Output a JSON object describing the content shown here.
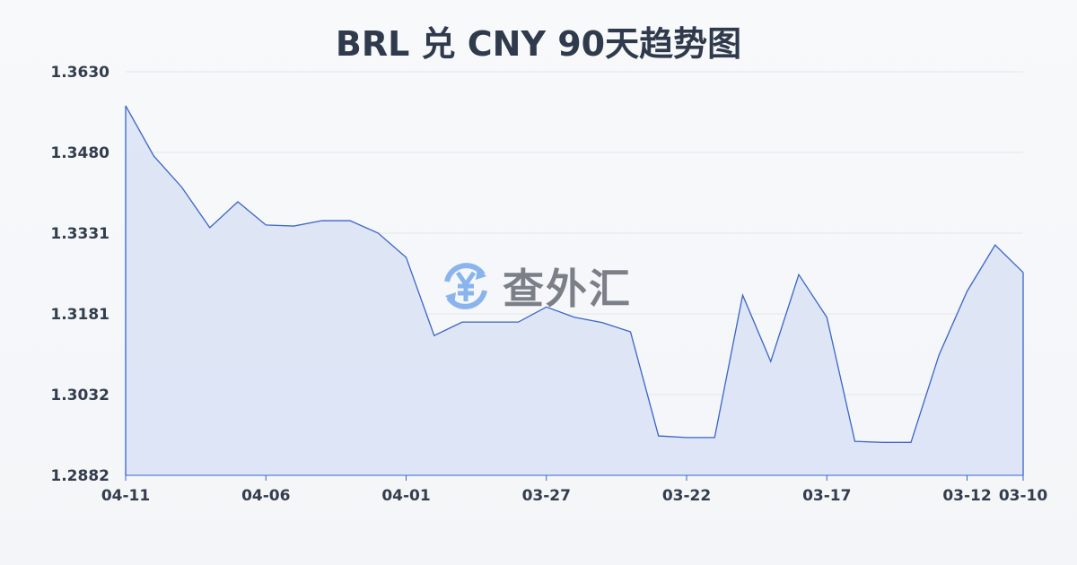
{
  "chart_data": {
    "type": "area",
    "title": "BRL 兑 CNY 90天趋势图",
    "xlabel": "",
    "ylabel": "",
    "x_tick_labels": [
      "04-11",
      "04-06",
      "04-01",
      "03-27",
      "03-22",
      "03-17",
      "03-12",
      "03-10"
    ],
    "y_tick_labels": [
      "1.3630",
      "1.3480",
      "1.3331",
      "1.3181",
      "1.3032",
      "1.2882"
    ],
    "ylim": [
      1.2882,
      1.363
    ],
    "grid": true,
    "x_order": "descending dates, 04-11 to 03-10",
    "series": [
      {
        "values": [
          1.3567,
          1.3474,
          1.3416,
          1.3341,
          1.3389,
          1.3346,
          1.3344,
          1.3354,
          1.3354,
          1.3331,
          1.3286,
          1.3141,
          1.3166,
          1.3166,
          1.3166,
          1.3194,
          1.3175,
          1.3165,
          1.3148,
          1.2955,
          1.2952,
          1.2952,
          1.3216,
          1.3093,
          1.3254,
          1.3175,
          1.2945,
          1.2943,
          1.2943,
          1.3105,
          1.3223,
          1.3309,
          1.3258
        ]
      }
    ],
    "colors": {
      "line": "#3a64c8",
      "fill": "#dbe3f5",
      "grid": "#e3e6ea"
    }
  },
  "watermark": {
    "text": "查外汇",
    "icon": "yen-exchange-icon"
  }
}
